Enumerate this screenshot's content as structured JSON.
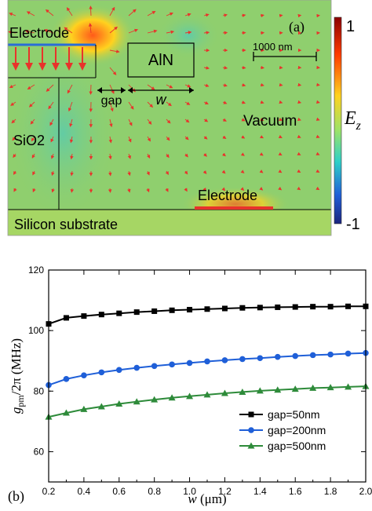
{
  "panel_a": {
    "label": "(a)",
    "labels": {
      "electrode_top": "Electrode",
      "aln": "AlN",
      "gap": "gap",
      "w": "w",
      "sio2": "SiO2",
      "vacuum": "Vacuum",
      "electrode_bottom": "Electrode",
      "substrate": "Silicon substrate",
      "scalebar": "1000 nm"
    },
    "colorbar": {
      "label": "E",
      "label_sub": "z",
      "max": "1",
      "min": "-1",
      "colors": [
        "#8b0000",
        "#ff3b00",
        "#ffd21f",
        "#9be36a",
        "#2fd0c8",
        "#1f5fd8",
        "#1a237e"
      ]
    },
    "field_colors": {
      "background": "#8fcf6e",
      "arrow": "#e8332b",
      "electrode": "#e8332b"
    }
  },
  "panel_b": {
    "label": "(b)"
  },
  "chart_data": {
    "type": "line",
    "xlabel": "w (μm)",
    "ylabel": "g_pm/2π (MHz)",
    "xlim": [
      0.2,
      2.0
    ],
    "ylim": [
      50,
      120
    ],
    "xticks": [
      0.2,
      0.4,
      0.6,
      0.8,
      1.0,
      1.2,
      1.4,
      1.6,
      1.8,
      2.0
    ],
    "xtick_labels": [
      "0.2",
      "0.4",
      "0.6",
      "0.8",
      "1.0",
      "1.2",
      "1.4",
      "1.6",
      "1.8",
      "2.0"
    ],
    "yticks": [
      60,
      80,
      100,
      120
    ],
    "ytick_labels": [
      "60",
      "80",
      "100",
      "120"
    ],
    "legend_position": "bottom-right",
    "series": [
      {
        "name": "gap=50nm",
        "color": "#000000",
        "marker": "square",
        "x": [
          0.2,
          0.3,
          0.4,
          0.5,
          0.6,
          0.7,
          0.8,
          0.9,
          1.0,
          1.1,
          1.2,
          1.3,
          1.4,
          1.5,
          1.6,
          1.7,
          1.8,
          1.9,
          2.0
        ],
        "y": [
          102.2,
          104.2,
          104.8,
          105.3,
          105.7,
          106.1,
          106.4,
          106.7,
          106.9,
          107.1,
          107.3,
          107.5,
          107.6,
          107.7,
          107.8,
          107.9,
          107.9,
          108.0,
          108.0
        ]
      },
      {
        "name": "gap=200nm",
        "color": "#1f5fd8",
        "marker": "circle",
        "x": [
          0.2,
          0.3,
          0.4,
          0.5,
          0.6,
          0.7,
          0.8,
          0.9,
          1.0,
          1.1,
          1.2,
          1.3,
          1.4,
          1.5,
          1.6,
          1.7,
          1.8,
          1.9,
          2.0
        ],
        "y": [
          82.0,
          84.0,
          85.2,
          86.2,
          87.0,
          87.7,
          88.3,
          88.8,
          89.3,
          89.8,
          90.2,
          90.6,
          90.9,
          91.3,
          91.6,
          91.9,
          92.1,
          92.4,
          92.6
        ]
      },
      {
        "name": "gap=500nm",
        "color": "#2e8b3a",
        "marker": "triangle",
        "x": [
          0.2,
          0.3,
          0.4,
          0.5,
          0.6,
          0.7,
          0.8,
          0.9,
          1.0,
          1.1,
          1.2,
          1.3,
          1.4,
          1.5,
          1.6,
          1.7,
          1.8,
          1.9,
          2.0
        ],
        "y": [
          71.5,
          72.8,
          74.0,
          74.9,
          75.8,
          76.5,
          77.2,
          77.8,
          78.3,
          78.8,
          79.3,
          79.7,
          80.1,
          80.4,
          80.7,
          81.0,
          81.2,
          81.4,
          81.6
        ]
      }
    ]
  }
}
